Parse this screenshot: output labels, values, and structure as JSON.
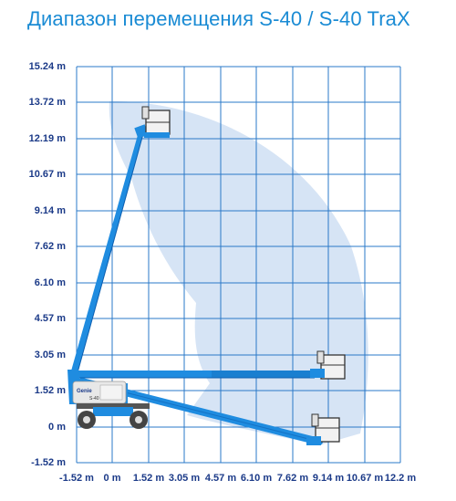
{
  "title": "Диапазон перемещения S-40 / S-40 TraX",
  "y_labels": [
    "15.24 m",
    "13.72 m",
    "12.19 m",
    "10.67 m",
    "9.14 m",
    "7.62 m",
    "6.10 m",
    "4.57 m",
    "3.05 m",
    "1.52 m",
    "0 m",
    "-1.52 m"
  ],
  "x_labels": [
    "-1.52 m",
    "0 m",
    "1.52 m",
    "3.05 m",
    "4.57 m",
    "6.10 m",
    "7.62 m",
    "9.14 m",
    "10.67 m",
    "12.2 m"
  ],
  "brand_label": "Genie",
  "model_label": "S-40",
  "colors": {
    "title": "#1a8bd4",
    "labels": "#1b3a88",
    "grid": "#2a78c8",
    "envelope": "#d6e4f5",
    "boom": "#1f8ce0",
    "boom_dark": "#0d5fb0",
    "chassis": "#e8e8e8",
    "wheel": "#444444"
  }
}
